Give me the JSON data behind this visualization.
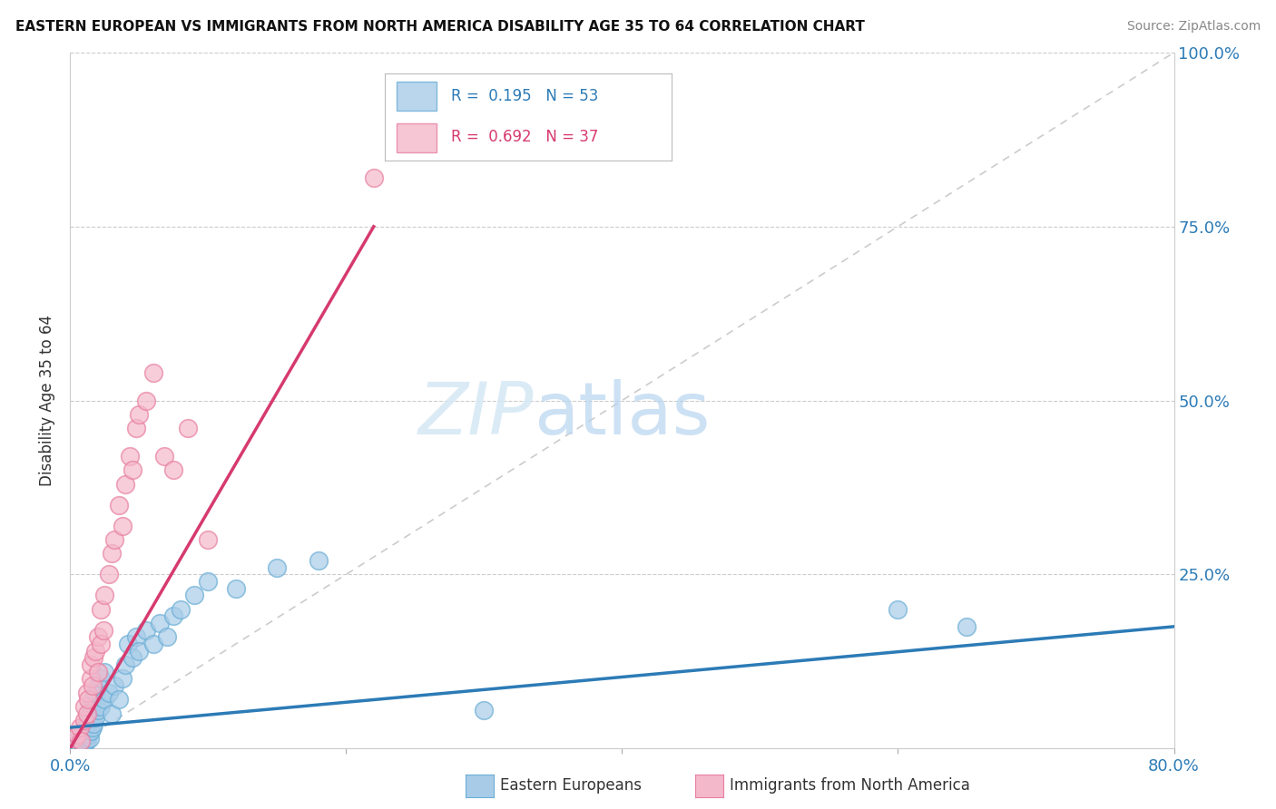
{
  "title": "EASTERN EUROPEAN VS IMMIGRANTS FROM NORTH AMERICA DISABILITY AGE 35 TO 64 CORRELATION CHART",
  "source": "Source: ZipAtlas.com",
  "ylabel": "Disability Age 35 to 64",
  "xlim": [
    0.0,
    0.8
  ],
  "ylim": [
    0.0,
    1.0
  ],
  "blue_R": 0.195,
  "blue_N": 53,
  "pink_R": 0.692,
  "pink_N": 37,
  "blue_color": "#a8cce8",
  "blue_edge_color": "#6baed6",
  "pink_color": "#f4b8cb",
  "pink_edge_color": "#e87fa0",
  "blue_trend_color": "#2c7bb6",
  "pink_trend_color": "#d63a6e",
  "diagonal_color": "#cccccc",
  "blue_trend_x0": 0.0,
  "blue_trend_y0": 0.03,
  "blue_trend_x1": 0.8,
  "blue_trend_y1": 0.175,
  "pink_trend_x0": 0.0,
  "pink_trend_y0": 0.0,
  "pink_trend_x1": 0.22,
  "pink_trend_y1": 0.75,
  "blue_scatter_x": [
    0.003,
    0.005,
    0.006,
    0.007,
    0.008,
    0.009,
    0.01,
    0.01,
    0.011,
    0.011,
    0.012,
    0.012,
    0.013,
    0.013,
    0.014,
    0.014,
    0.015,
    0.015,
    0.016,
    0.016,
    0.017,
    0.018,
    0.018,
    0.02,
    0.02,
    0.022,
    0.022,
    0.025,
    0.025,
    0.028,
    0.03,
    0.032,
    0.035,
    0.038,
    0.04,
    0.042,
    0.045,
    0.048,
    0.05,
    0.055,
    0.06,
    0.065,
    0.07,
    0.075,
    0.08,
    0.09,
    0.1,
    0.12,
    0.15,
    0.18,
    0.3,
    0.6,
    0.65
  ],
  "blue_scatter_y": [
    0.01,
    0.012,
    0.008,
    0.015,
    0.02,
    0.007,
    0.025,
    0.005,
    0.018,
    0.03,
    0.012,
    0.035,
    0.02,
    0.04,
    0.015,
    0.05,
    0.025,
    0.06,
    0.03,
    0.07,
    0.035,
    0.045,
    0.08,
    0.055,
    0.09,
    0.06,
    0.1,
    0.07,
    0.11,
    0.08,
    0.05,
    0.09,
    0.07,
    0.1,
    0.12,
    0.15,
    0.13,
    0.16,
    0.14,
    0.17,
    0.15,
    0.18,
    0.16,
    0.19,
    0.2,
    0.22,
    0.24,
    0.23,
    0.26,
    0.27,
    0.055,
    0.2,
    0.175
  ],
  "pink_scatter_x": [
    0.003,
    0.005,
    0.007,
    0.008,
    0.01,
    0.01,
    0.012,
    0.012,
    0.013,
    0.015,
    0.015,
    0.016,
    0.017,
    0.018,
    0.02,
    0.02,
    0.022,
    0.022,
    0.024,
    0.025,
    0.028,
    0.03,
    0.032,
    0.035,
    0.038,
    0.04,
    0.043,
    0.045,
    0.048,
    0.05,
    0.055,
    0.06,
    0.068,
    0.075,
    0.085,
    0.1,
    0.22
  ],
  "pink_scatter_y": [
    0.015,
    0.02,
    0.03,
    0.01,
    0.04,
    0.06,
    0.05,
    0.08,
    0.07,
    0.1,
    0.12,
    0.09,
    0.13,
    0.14,
    0.11,
    0.16,
    0.15,
    0.2,
    0.17,
    0.22,
    0.25,
    0.28,
    0.3,
    0.35,
    0.32,
    0.38,
    0.42,
    0.4,
    0.46,
    0.48,
    0.5,
    0.54,
    0.42,
    0.4,
    0.46,
    0.3,
    0.82
  ]
}
